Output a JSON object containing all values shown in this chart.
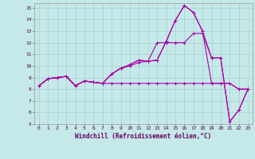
{
  "xlabel": "Windchill (Refroidissement éolien,°C)",
  "background_color": "#c5e8e8",
  "grid_color": "#add4d4",
  "line_color": "#aa00aa",
  "xlim": [
    -0.5,
    23.5
  ],
  "ylim": [
    5,
    15.4
  ],
  "yticks": [
    5,
    6,
    7,
    8,
    9,
    10,
    11,
    12,
    13,
    14,
    15
  ],
  "xticks": [
    0,
    1,
    2,
    3,
    4,
    5,
    6,
    7,
    8,
    9,
    10,
    11,
    12,
    13,
    14,
    15,
    16,
    17,
    18,
    19,
    20,
    21,
    22,
    23
  ],
  "series": [
    {
      "x": [
        0,
        1,
        2,
        3,
        4,
        5,
        6,
        7,
        8,
        9,
        10,
        11,
        12,
        13,
        14,
        15,
        16,
        17,
        18,
        19,
        20,
        21,
        22,
        23
      ],
      "y": [
        8.3,
        8.9,
        9.0,
        9.1,
        8.3,
        8.7,
        8.6,
        8.5,
        9.3,
        9.8,
        10.1,
        10.5,
        10.4,
        10.5,
        12.1,
        13.9,
        15.2,
        14.6,
        13.0,
        8.5,
        8.5,
        8.5,
        8.0,
        8.0
      ]
    },
    {
      "x": [
        0,
        1,
        2,
        3,
        4,
        5,
        6,
        7,
        8,
        9,
        10,
        11,
        12,
        13,
        14,
        15,
        16,
        17,
        18,
        19,
        20,
        21,
        22,
        23
      ],
      "y": [
        8.3,
        8.9,
        9.0,
        9.1,
        8.3,
        8.7,
        8.6,
        8.5,
        9.3,
        9.8,
        10.1,
        10.5,
        10.4,
        10.5,
        12.1,
        13.9,
        15.2,
        14.6,
        13.0,
        10.7,
        10.7,
        5.2,
        6.2,
        8.0
      ]
    },
    {
      "x": [
        0,
        1,
        2,
        3,
        4,
        5,
        6,
        7,
        8,
        9,
        10,
        11,
        12,
        13,
        14,
        15,
        16,
        17,
        18,
        19,
        20,
        21,
        22,
        23
      ],
      "y": [
        8.3,
        8.9,
        9.0,
        9.1,
        8.3,
        8.7,
        8.6,
        8.5,
        9.3,
        9.8,
        10.0,
        10.3,
        10.4,
        12.0,
        12.0,
        12.0,
        12.0,
        12.8,
        12.8,
        10.7,
        10.7,
        5.2,
        6.2,
        8.0
      ]
    },
    {
      "x": [
        0,
        1,
        2,
        3,
        4,
        5,
        6,
        7,
        8,
        9,
        10,
        11,
        12,
        13,
        14,
        15,
        16,
        17,
        18,
        19,
        20,
        21,
        22,
        23
      ],
      "y": [
        8.3,
        8.9,
        9.0,
        9.1,
        8.3,
        8.7,
        8.6,
        8.5,
        8.5,
        8.5,
        8.5,
        8.5,
        8.5,
        8.5,
        8.5,
        8.5,
        8.5,
        8.5,
        8.5,
        8.5,
        8.5,
        8.5,
        8.0,
        8.0
      ]
    }
  ]
}
